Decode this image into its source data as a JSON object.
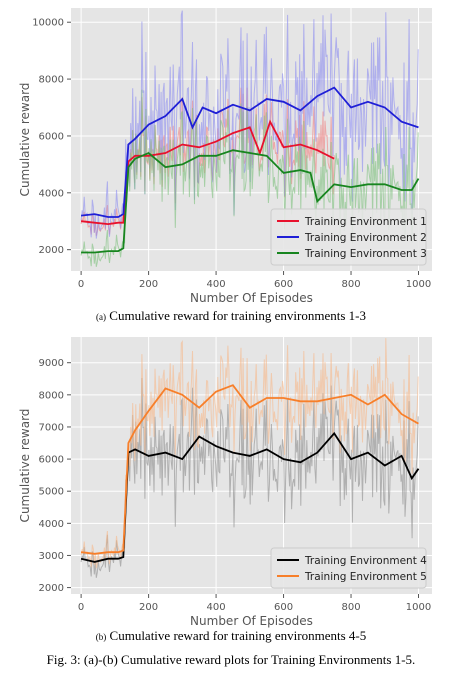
{
  "figure_caption": "Fig. 3: (a)-(b) Cumulative reward plots for Training Environments 1-5.",
  "chart_data": [
    {
      "type": "line",
      "tag": "(a)",
      "caption": "Cumulative reward for training environments 1-3",
      "xlabel": "Number Of Episodes",
      "ylabel": "Cumulative reward",
      "xlim": [
        -30,
        1040
      ],
      "ylim": [
        1250,
        10500
      ],
      "xticks": [
        0,
        200,
        400,
        600,
        800,
        1000
      ],
      "yticks": [
        2000,
        4000,
        6000,
        8000,
        10000
      ],
      "grid": true,
      "legend_position": "bottom-right",
      "series": [
        {
          "name": "Training Environment 1",
          "color": "#e8112d",
          "raw_color": "#f08080",
          "x": [
            0,
            40,
            80,
            110,
            125,
            140,
            160,
            200,
            250,
            300,
            350,
            400,
            450,
            500,
            530,
            560,
            600,
            650,
            700,
            750
          ],
          "values": [
            3000,
            2950,
            2900,
            2950,
            2950,
            5100,
            5300,
            5300,
            5400,
            5700,
            5600,
            5800,
            6100,
            6300,
            5400,
            6500,
            5600,
            5700,
            5500,
            5200
          ],
          "raw_spread": 800
        },
        {
          "name": "Training Environment 2",
          "color": "#1f1fd6",
          "raw_color": "#8a8af0",
          "x": [
            0,
            40,
            80,
            110,
            125,
            140,
            160,
            200,
            250,
            300,
            330,
            360,
            400,
            450,
            500,
            550,
            600,
            650,
            700,
            750,
            800,
            850,
            900,
            950,
            1000
          ],
          "values": [
            3200,
            3250,
            3150,
            3150,
            3250,
            5700,
            5900,
            6400,
            6700,
            7300,
            6300,
            7000,
            6800,
            7100,
            6900,
            7300,
            7200,
            6900,
            7400,
            7700,
            7000,
            7200,
            7000,
            6500,
            6300
          ],
          "raw_spread": 1500
        },
        {
          "name": "Training Environment 3",
          "color": "#17851f",
          "raw_color": "#7cc07c",
          "x": [
            0,
            40,
            80,
            110,
            125,
            140,
            160,
            200,
            250,
            300,
            350,
            400,
            450,
            500,
            550,
            600,
            650,
            680,
            700,
            750,
            800,
            850,
            900,
            950,
            980,
            1000
          ],
          "values": [
            1900,
            1900,
            1950,
            1950,
            2050,
            4900,
            5200,
            5400,
            4900,
            5000,
            5300,
            5300,
            5500,
            5400,
            5300,
            4700,
            4800,
            4700,
            3700,
            4300,
            4200,
            4300,
            4300,
            4100,
            4100,
            4500
          ],
          "raw_spread": 900
        }
      ]
    },
    {
      "type": "line",
      "tag": "(b)",
      "caption": "Cumulative reward for training environments 4-5",
      "xlabel": "Number Of Episodes",
      "ylabel": "Cumulative reward",
      "xlim": [
        -30,
        1040
      ],
      "ylim": [
        1800,
        9800
      ],
      "xticks": [
        0,
        200,
        400,
        600,
        800,
        1000
      ],
      "yticks": [
        2000,
        3000,
        4000,
        5000,
        6000,
        7000,
        8000,
        9000
      ],
      "grid": true,
      "legend_position": "bottom-right",
      "series": [
        {
          "name": "Training Environment 4",
          "color": "#000000",
          "raw_color": "#8c8c8c",
          "x": [
            0,
            40,
            80,
            110,
            125,
            140,
            160,
            200,
            250,
            300,
            350,
            400,
            450,
            500,
            550,
            600,
            650,
            700,
            750,
            800,
            850,
            900,
            950,
            980,
            1000
          ],
          "values": [
            2900,
            2800,
            2900,
            2900,
            2950,
            6200,
            6300,
            6100,
            6200,
            6000,
            6700,
            6400,
            6200,
            6100,
            6300,
            6000,
            5900,
            6200,
            6800,
            6000,
            6200,
            5800,
            6100,
            5400,
            5700
          ],
          "raw_spread": 900
        },
        {
          "name": "Training Environment 5",
          "color": "#f77f2a",
          "raw_color": "#f7b888",
          "x": [
            0,
            40,
            80,
            110,
            125,
            140,
            160,
            200,
            250,
            300,
            350,
            400,
            450,
            500,
            550,
            600,
            650,
            700,
            750,
            800,
            850,
            900,
            950,
            1000
          ],
          "values": [
            3100,
            3050,
            3100,
            3100,
            3150,
            6500,
            6900,
            7500,
            8200,
            8000,
            7600,
            8100,
            8300,
            7600,
            7900,
            7900,
            7800,
            7800,
            7900,
            8000,
            7700,
            8000,
            7400,
            7100
          ],
          "raw_spread": 800
        }
      ]
    }
  ]
}
